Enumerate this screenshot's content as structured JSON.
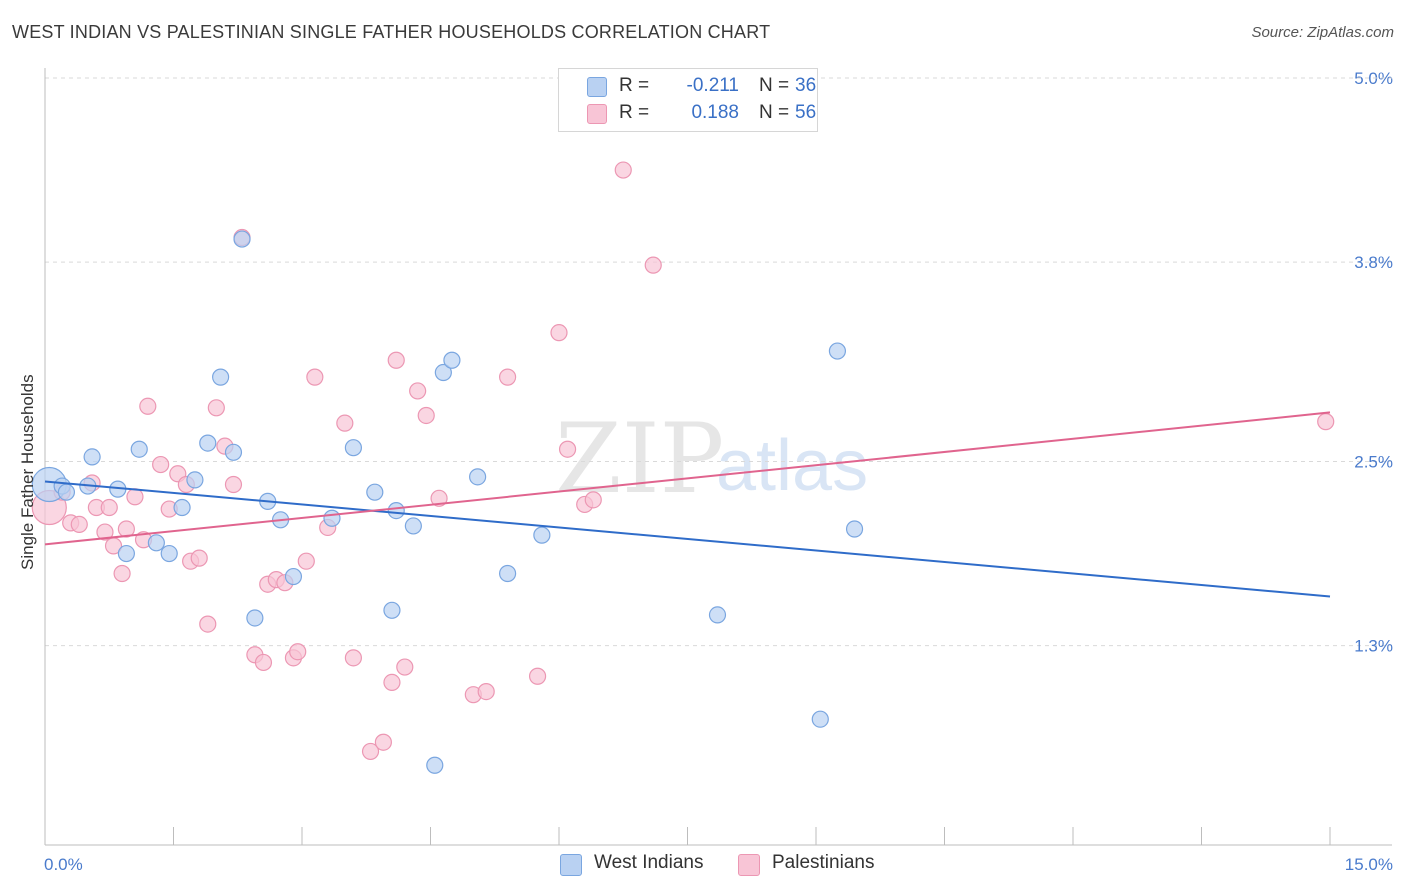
{
  "title": "WEST INDIAN VS PALESTINIAN SINGLE FATHER HOUSEHOLDS CORRELATION CHART",
  "source": "Source: ZipAtlas.com",
  "watermark": {
    "zip": "ZIP",
    "atlas": "atlas"
  },
  "legend": {
    "rows": [
      {
        "name": "West Indians",
        "r_label": "R =",
        "r_value": "-0.211",
        "n_label": "N =",
        "n_value": "36"
      },
      {
        "name": "Palestinians",
        "r_label": "R =",
        "r_value": "0.188",
        "n_label": "N =",
        "n_value": "56"
      }
    ]
  },
  "colors": {
    "west_fill": "#b9d1f2",
    "west_stroke": "#7aa6e0",
    "west_line": "#2f6cc9",
    "pal_fill": "#f8c5d6",
    "pal_stroke": "#ec97b3",
    "pal_line": "#e0648e",
    "tick_text": "#4a7bcc",
    "grid": "#d9d9d9"
  },
  "chart_data": {
    "type": "scatter",
    "title": "WEST INDIAN VS PALESTINIAN SINGLE FATHER HOUSEHOLDS CORRELATION CHART",
    "xlabel": "",
    "ylabel": "Single Father Households",
    "xlim": [
      0,
      15
    ],
    "ylim": [
      0.0,
      5.0
    ],
    "x_tick_labels": [
      "0.0%",
      "15.0%"
    ],
    "y_ticks": [
      1.3,
      2.5,
      3.8,
      5.0
    ],
    "y_tick_labels": [
      "1.3%",
      "2.5%",
      "3.8%",
      "5.0%"
    ],
    "grid": true,
    "legend_position": "top-center",
    "series": [
      {
        "name": "West Indians",
        "r": -0.211,
        "n": 36,
        "trend": {
          "x": [
            0.0,
            15.0
          ],
          "y": [
            2.37,
            1.62
          ]
        },
        "points": [
          {
            "x": 0.05,
            "y": 2.35,
            "big": true
          },
          {
            "x": 0.2,
            "y": 2.34
          },
          {
            "x": 0.5,
            "y": 2.34
          },
          {
            "x": 0.55,
            "y": 2.53
          },
          {
            "x": 0.85,
            "y": 2.32
          },
          {
            "x": 0.95,
            "y": 1.9
          },
          {
            "x": 1.1,
            "y": 2.58
          },
          {
            "x": 1.3,
            "y": 1.97
          },
          {
            "x": 1.45,
            "y": 1.9
          },
          {
            "x": 1.6,
            "y": 2.2
          },
          {
            "x": 1.75,
            "y": 2.38
          },
          {
            "x": 1.9,
            "y": 2.62
          },
          {
            "x": 2.05,
            "y": 3.05
          },
          {
            "x": 2.2,
            "y": 2.56
          },
          {
            "x": 2.3,
            "y": 3.95
          },
          {
            "x": 2.45,
            "y": 1.48
          },
          {
            "x": 2.6,
            "y": 2.24
          },
          {
            "x": 2.75,
            "y": 2.12
          },
          {
            "x": 2.9,
            "y": 1.75
          },
          {
            "x": 3.35,
            "y": 2.13
          },
          {
            "x": 3.6,
            "y": 2.59
          },
          {
            "x": 3.85,
            "y": 2.3
          },
          {
            "x": 4.05,
            "y": 1.53
          },
          {
            "x": 4.1,
            "y": 2.18
          },
          {
            "x": 4.3,
            "y": 2.08
          },
          {
            "x": 4.55,
            "y": 0.52
          },
          {
            "x": 4.65,
            "y": 3.08
          },
          {
            "x": 4.75,
            "y": 3.16
          },
          {
            "x": 5.05,
            "y": 2.4
          },
          {
            "x": 5.4,
            "y": 1.77
          },
          {
            "x": 5.8,
            "y": 2.02
          },
          {
            "x": 7.85,
            "y": 1.5
          },
          {
            "x": 9.05,
            "y": 0.82
          },
          {
            "x": 9.25,
            "y": 3.22
          },
          {
            "x": 9.45,
            "y": 2.06
          },
          {
            "x": 0.25,
            "y": 2.3
          }
        ]
      },
      {
        "name": "Palestinians",
        "r": 0.188,
        "n": 56,
        "trend": {
          "x": [
            0.0,
            15.0
          ],
          "y": [
            1.96,
            2.82
          ]
        },
        "points": [
          {
            "x": 0.05,
            "y": 2.2,
            "big": true
          },
          {
            "x": 0.2,
            "y": 2.3
          },
          {
            "x": 0.3,
            "y": 2.1
          },
          {
            "x": 0.4,
            "y": 2.09
          },
          {
            "x": 0.6,
            "y": 2.2
          },
          {
            "x": 0.7,
            "y": 2.04
          },
          {
            "x": 0.75,
            "y": 2.2
          },
          {
            "x": 0.8,
            "y": 1.95
          },
          {
            "x": 0.9,
            "y": 1.77
          },
          {
            "x": 0.95,
            "y": 2.06
          },
          {
            "x": 1.05,
            "y": 2.27
          },
          {
            "x": 1.15,
            "y": 1.99
          },
          {
            "x": 1.2,
            "y": 2.86
          },
          {
            "x": 1.35,
            "y": 2.48
          },
          {
            "x": 1.45,
            "y": 2.19
          },
          {
            "x": 1.55,
            "y": 2.42
          },
          {
            "x": 1.65,
            "y": 2.35
          },
          {
            "x": 1.7,
            "y": 1.85
          },
          {
            "x": 1.8,
            "y": 1.87
          },
          {
            "x": 1.9,
            "y": 1.44
          },
          {
            "x": 2.0,
            "y": 2.85
          },
          {
            "x": 2.1,
            "y": 2.6
          },
          {
            "x": 2.2,
            "y": 2.35
          },
          {
            "x": 2.3,
            "y": 3.96
          },
          {
            "x": 2.45,
            "y": 1.24
          },
          {
            "x": 2.55,
            "y": 1.19
          },
          {
            "x": 2.6,
            "y": 1.7
          },
          {
            "x": 2.7,
            "y": 1.73
          },
          {
            "x": 2.8,
            "y": 1.71
          },
          {
            "x": 2.9,
            "y": 1.22
          },
          {
            "x": 2.95,
            "y": 1.26
          },
          {
            "x": 3.05,
            "y": 1.85
          },
          {
            "x": 3.15,
            "y": 3.05
          },
          {
            "x": 3.3,
            "y": 2.07
          },
          {
            "x": 3.5,
            "y": 2.75
          },
          {
            "x": 3.6,
            "y": 1.22
          },
          {
            "x": 3.8,
            "y": 0.61
          },
          {
            "x": 3.95,
            "y": 0.67
          },
          {
            "x": 4.05,
            "y": 1.06
          },
          {
            "x": 4.1,
            "y": 3.16
          },
          {
            "x": 4.2,
            "y": 1.16
          },
          {
            "x": 4.35,
            "y": 2.96
          },
          {
            "x": 4.45,
            "y": 2.8
          },
          {
            "x": 4.6,
            "y": 2.26
          },
          {
            "x": 5.0,
            "y": 0.98
          },
          {
            "x": 5.15,
            "y": 1.0
          },
          {
            "x": 5.4,
            "y": 3.05
          },
          {
            "x": 5.75,
            "y": 1.1
          },
          {
            "x": 6.0,
            "y": 3.34
          },
          {
            "x": 6.1,
            "y": 2.58
          },
          {
            "x": 6.3,
            "y": 2.22
          },
          {
            "x": 6.4,
            "y": 2.25
          },
          {
            "x": 6.75,
            "y": 4.4
          },
          {
            "x": 7.1,
            "y": 3.78
          },
          {
            "x": 14.95,
            "y": 2.76
          },
          {
            "x": 0.55,
            "y": 2.36
          }
        ]
      }
    ]
  }
}
